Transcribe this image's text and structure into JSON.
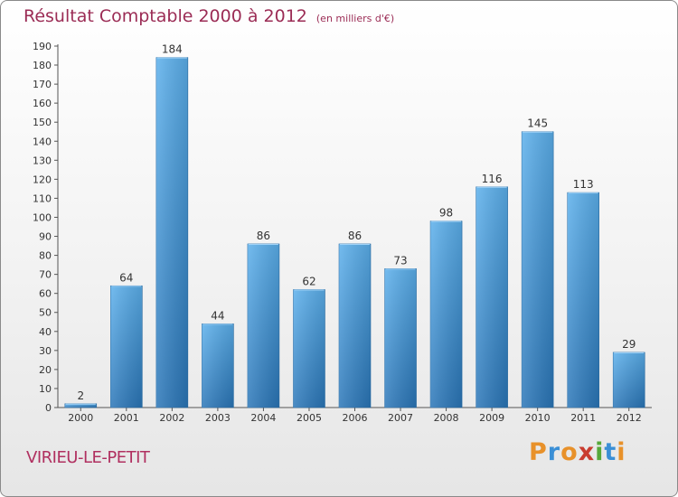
{
  "header": {
    "title": "Résultat Comptable 2000 à 2012",
    "subtitle": "(en milliers d'€)"
  },
  "footer": {
    "city": "VIRIEU-LE-PETIT",
    "brand": "Proxiti",
    "brand_colors": [
      "#e8912a",
      "#3a8fd6",
      "#e8912a",
      "#c93c2f",
      "#56a83a",
      "#3a8fd6",
      "#e8912a"
    ]
  },
  "chart_data": {
    "type": "bar",
    "title": "Résultat Comptable 2000 à 2012",
    "subtitle": "(en milliers d'€)",
    "categories": [
      "2000",
      "2001",
      "2002",
      "2003",
      "2004",
      "2005",
      "2006",
      "2007",
      "2008",
      "2009",
      "2010",
      "2011",
      "2012"
    ],
    "values": [
      2,
      64,
      184,
      44,
      86,
      62,
      86,
      73,
      98,
      116,
      145,
      113,
      29
    ],
    "ylim": [
      0,
      190
    ],
    "ytick_step": 10,
    "grid": false,
    "bar_color": "#3d8fd1"
  }
}
